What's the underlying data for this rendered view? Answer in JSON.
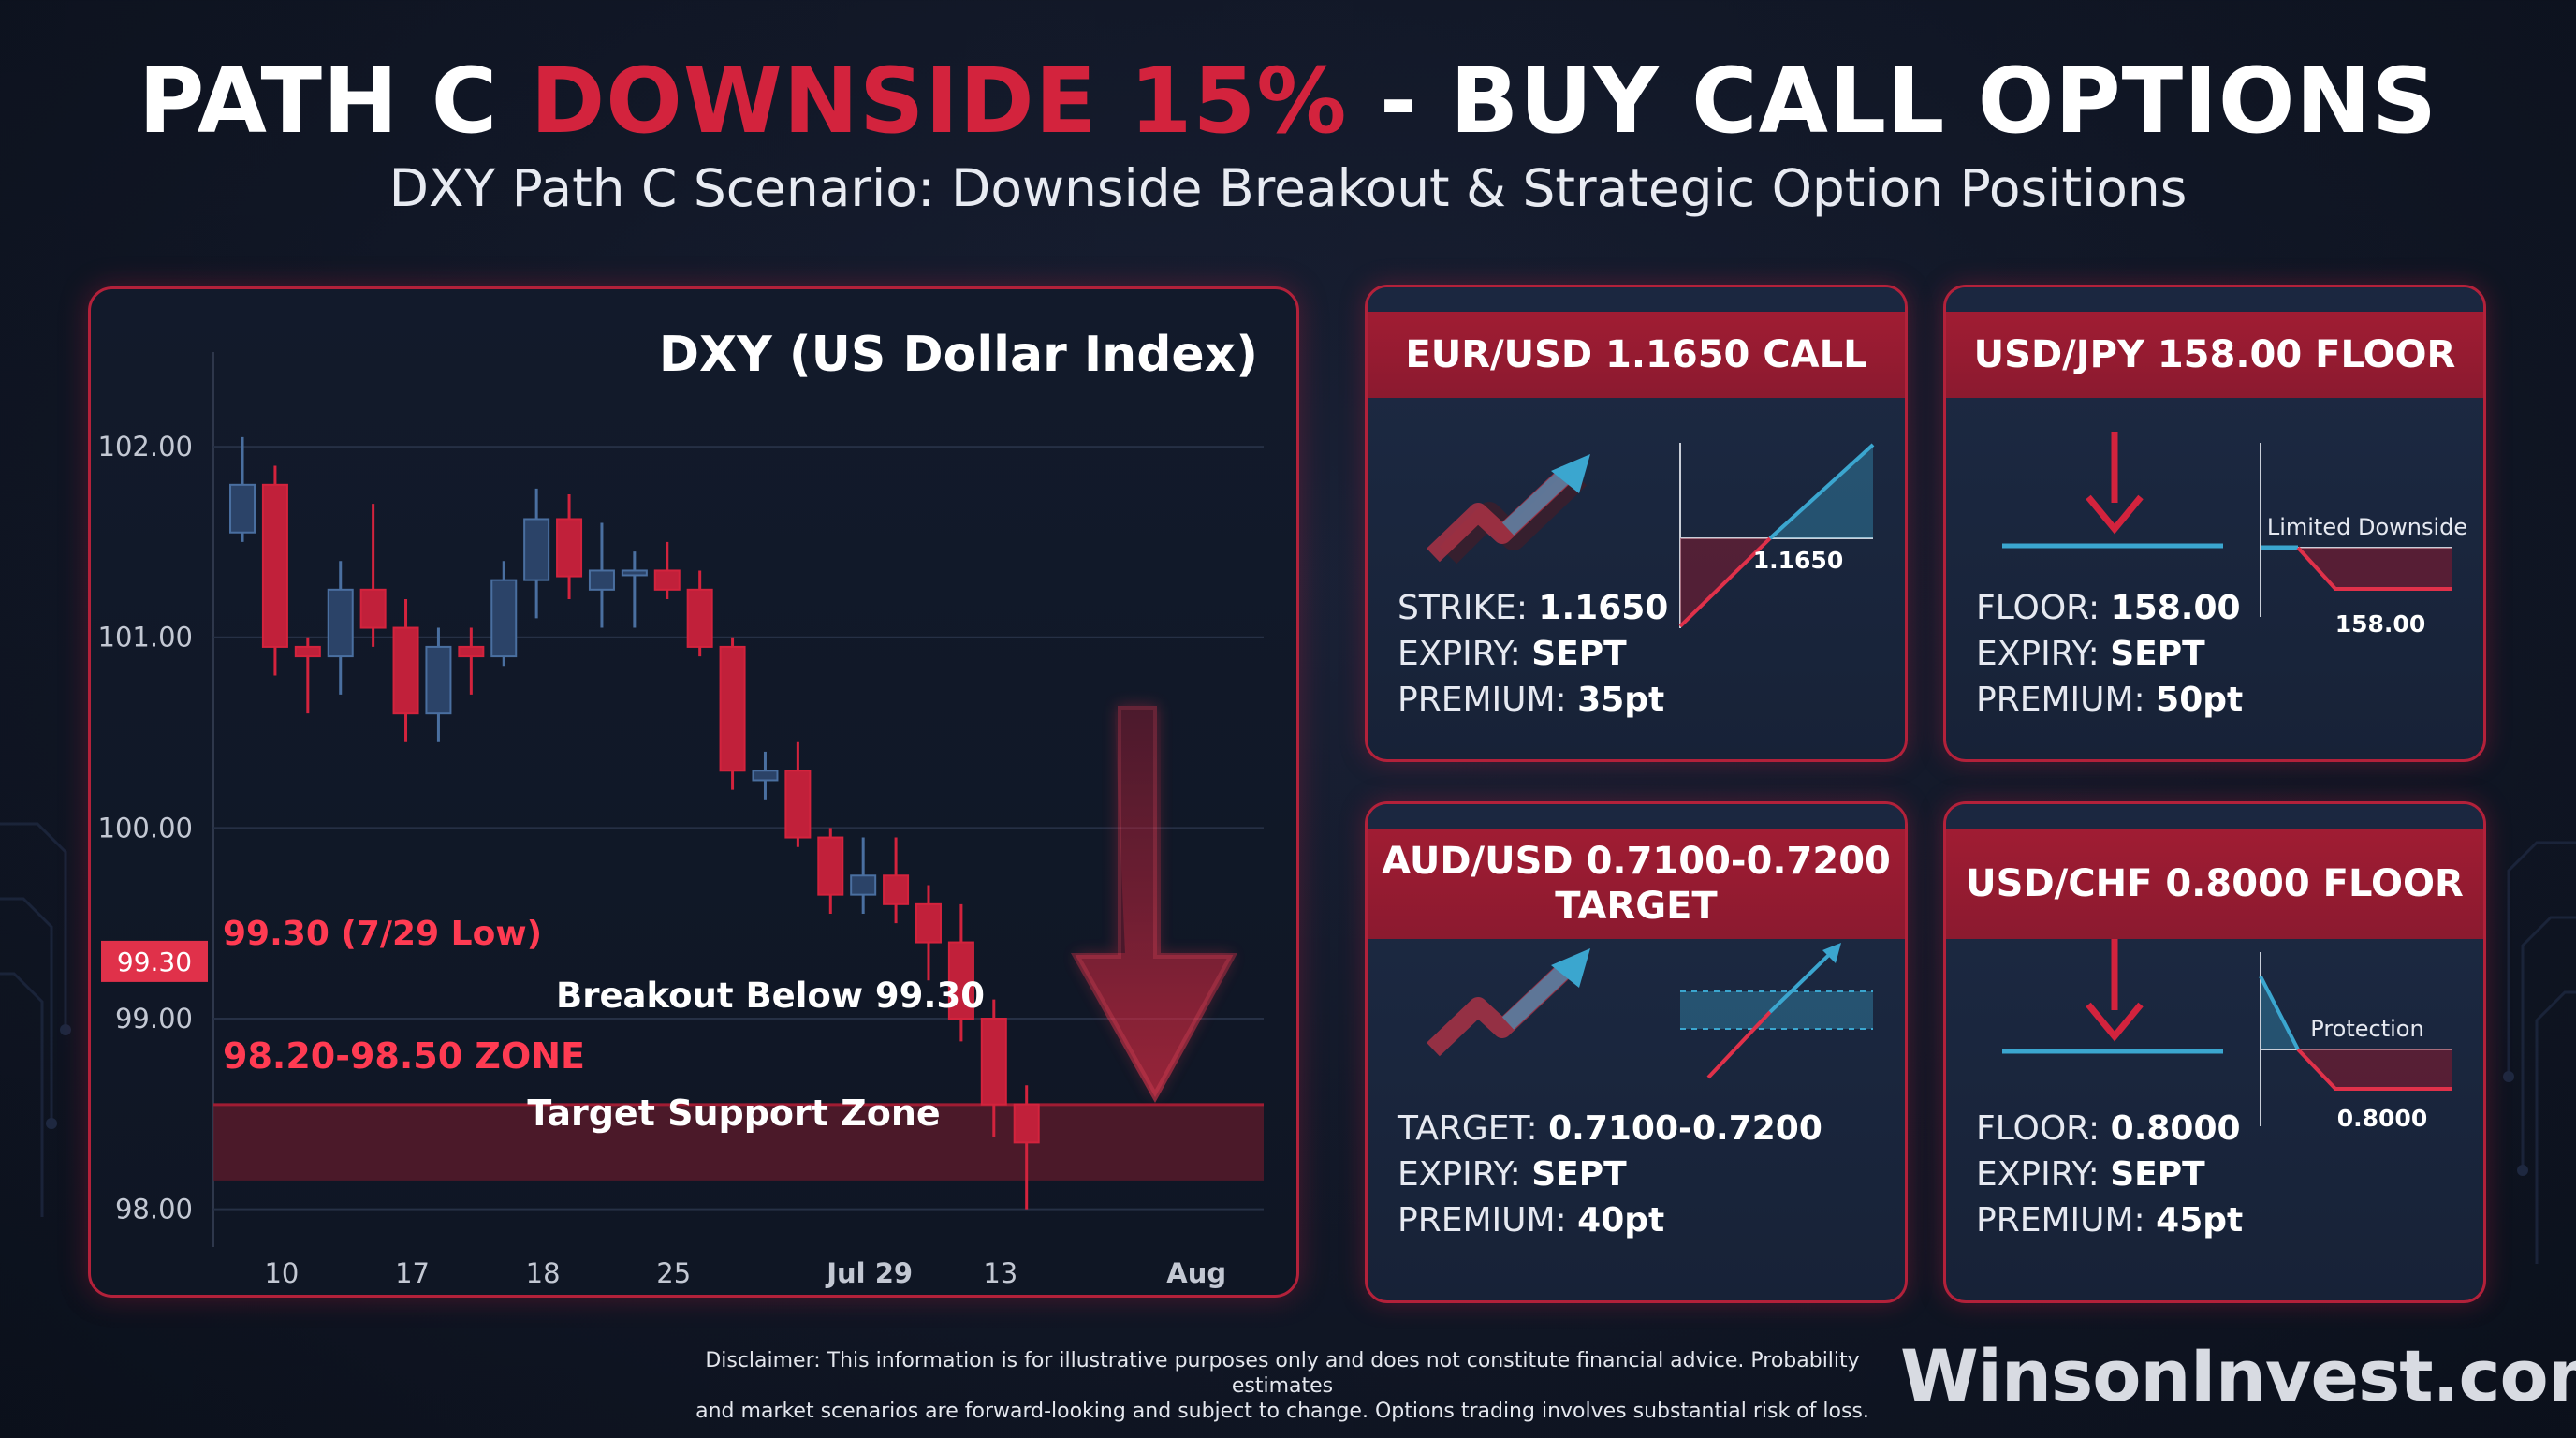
{
  "header": {
    "title_part1": "PATH C",
    "title_part2": "DOWNSIDE 15%",
    "title_part3": "- BUY CALL OPTIONS",
    "subtitle": "DXY Path C Scenario: Downside Breakout & Strategic Option Positions"
  },
  "colors": {
    "accent_red": "#d3233d",
    "accent_blue": "#3ba6cf",
    "panel_bg": "#121a2b"
  },
  "chart_data": {
    "type": "candlestick",
    "title": "DXY (US Dollar Index)",
    "xlabel": "",
    "ylabel": "",
    "ylim": [
      97.9,
      102.3
    ],
    "y_ticks": [
      {
        "value": 102.0,
        "label": "102.00"
      },
      {
        "value": 101.0,
        "label": "101.00"
      },
      {
        "value": 100.0,
        "label": "100.00"
      },
      {
        "value": 99.0,
        "label": "99.00"
      },
      {
        "value": 98.0,
        "label": "98.00"
      }
    ],
    "x_ticks": [
      {
        "index": 1,
        "label": "10"
      },
      {
        "index": 5,
        "label": "17"
      },
      {
        "index": 9,
        "label": "18"
      },
      {
        "index": 13,
        "label": "25"
      },
      {
        "index": 19,
        "label": "Jul 29"
      },
      {
        "index": 23,
        "label": "13"
      },
      {
        "index": 29,
        "label": "Aug"
      }
    ],
    "candles": [
      {
        "o": 101.55,
        "h": 102.05,
        "l": 101.5,
        "c": 101.8
      },
      {
        "o": 101.8,
        "h": 101.9,
        "l": 100.8,
        "c": 100.95
      },
      {
        "o": 100.95,
        "h": 101.0,
        "l": 100.6,
        "c": 100.9
      },
      {
        "o": 100.9,
        "h": 101.4,
        "l": 100.7,
        "c": 101.25
      },
      {
        "o": 101.25,
        "h": 101.7,
        "l": 100.95,
        "c": 101.05
      },
      {
        "o": 101.05,
        "h": 101.2,
        "l": 100.45,
        "c": 100.6
      },
      {
        "o": 100.6,
        "h": 101.05,
        "l": 100.45,
        "c": 100.95
      },
      {
        "o": 100.95,
        "h": 101.05,
        "l": 100.7,
        "c": 100.9
      },
      {
        "o": 100.9,
        "h": 101.4,
        "l": 100.85,
        "c": 101.3
      },
      {
        "o": 101.3,
        "h": 101.78,
        "l": 101.1,
        "c": 101.62
      },
      {
        "o": 101.62,
        "h": 101.75,
        "l": 101.2,
        "c": 101.32
      },
      {
        "o": 101.25,
        "h": 101.6,
        "l": 101.05,
        "c": 101.35
      },
      {
        "o": 101.35,
        "h": 101.45,
        "l": 101.05,
        "c": 101.35
      },
      {
        "o": 101.35,
        "h": 101.5,
        "l": 101.2,
        "c": 101.25
      },
      {
        "o": 101.25,
        "h": 101.35,
        "l": 100.9,
        "c": 100.95
      },
      {
        "o": 100.95,
        "h": 101.0,
        "l": 100.2,
        "c": 100.3
      },
      {
        "o": 100.25,
        "h": 100.4,
        "l": 100.15,
        "c": 100.3
      },
      {
        "o": 100.3,
        "h": 100.45,
        "l": 99.9,
        "c": 99.95
      },
      {
        "o": 99.95,
        "h": 100.0,
        "l": 99.55,
        "c": 99.65
      },
      {
        "o": 99.65,
        "h": 99.95,
        "l": 99.55,
        "c": 99.75
      },
      {
        "o": 99.75,
        "h": 99.95,
        "l": 99.5,
        "c": 99.6
      },
      {
        "o": 99.6,
        "h": 99.7,
        "l": 99.2,
        "c": 99.4
      },
      {
        "o": 99.4,
        "h": 99.6,
        "l": 98.88,
        "c": 99.0
      },
      {
        "o": 99.0,
        "h": 99.1,
        "l": 98.38,
        "c": 98.55
      },
      {
        "o": 98.55,
        "h": 98.65,
        "l": 98.0,
        "c": 98.35
      }
    ],
    "levels": [
      {
        "value": 99.3,
        "label": "99.30 (7/29 Low)",
        "tag": "99.30"
      }
    ],
    "zone": {
      "from": 98.2,
      "to": 98.5,
      "label": "98.20-98.50 ZONE",
      "inner_label": "Target Support Zone"
    },
    "annotation": "Breakout Below 99.30"
  },
  "cards": [
    {
      "title": "EUR/USD 1.1650 CALL",
      "lines": [
        {
          "k": "STRIKE:",
          "v": "1.1650"
        },
        {
          "k": "EXPIRY:",
          "v": "SEPT"
        },
        {
          "k": "PREMIUM:",
          "v": "35pt"
        }
      ],
      "diagram_label": "1.1650"
    },
    {
      "title": "USD/JPY 158.00 FLOOR",
      "lines": [
        {
          "k": "FLOOR:",
          "v": "158.00"
        },
        {
          "k": "EXPIRY:",
          "v": "SEPT"
        },
        {
          "k": "PREMIUM:",
          "v": "50pt"
        }
      ],
      "diagram_caption": "Limited Downside",
      "diagram_label": "158.00"
    },
    {
      "title": "AUD/USD 0.7100-0.7200 TARGET",
      "lines": [
        {
          "k": "TARGET:",
          "v": "0.7100-0.7200"
        },
        {
          "k": "EXPIRY:",
          "v": "SEPT"
        },
        {
          "k": "PREMIUM:",
          "v": "40pt"
        }
      ]
    },
    {
      "title": "USD/CHF 0.8000 FLOOR",
      "lines": [
        {
          "k": "FLOOR:",
          "v": "0.8000"
        },
        {
          "k": "EXPIRY:",
          "v": "SEPT"
        },
        {
          "k": "PREMIUM:",
          "v": "45pt"
        }
      ],
      "diagram_caption": "Protection",
      "diagram_label": "0.8000"
    }
  ],
  "footer": {
    "disclaimer_line1": "Disclaimer: This information is for illustrative purposes only and does not constitute financial advice. Probability estimates",
    "disclaimer_line2": "and market scenarios are forward-looking and subject to change. Options trading involves substantial risk of loss.",
    "brand": "WinsonInvest.com"
  }
}
